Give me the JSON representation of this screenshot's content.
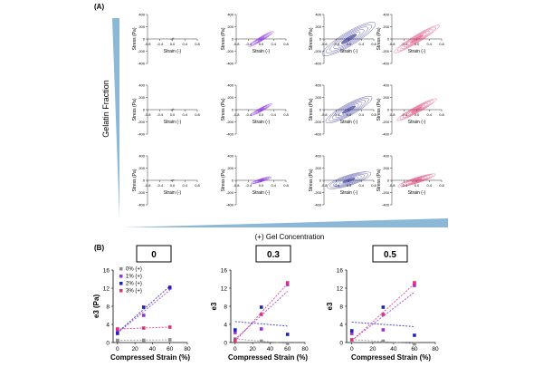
{
  "panel_a": {
    "label": "(A)",
    "y_arrow_label": "Gelatin Fraction",
    "x_arrow_label": "(+) Gel Concentration",
    "colors": [
      "#5c5c5c",
      "#8a2be2",
      "#1a1a8c",
      "#d8306a"
    ],
    "row_slopes": [
      1.0,
      0.6,
      0.35
    ],
    "col_amp": [
      0.05,
      0.8,
      1.7,
      1.45
    ],
    "common": {
      "xlabel": "Strain (-)",
      "ylabel": "Stress (Pa)",
      "xticks": [
        "-0.8",
        "-0.4",
        "0.0",
        "0.4",
        "0.8"
      ],
      "yticks": [
        "400",
        "200",
        "0",
        "-200",
        "-400"
      ]
    }
  },
  "panel_b": {
    "label": "(B)",
    "legend": [
      "0% (+)",
      "1% (+)",
      "2% (+)",
      "3% (+)"
    ]
  },
  "chart_data": [
    {
      "type": "scatter",
      "title": "0",
      "xlabel": "Compressed Strain (%)",
      "ylabel": "e3 (Pa)",
      "xlim": [
        -5,
        80
      ],
      "ylim": [
        0,
        16
      ],
      "xticks": [
        0,
        20,
        40,
        60,
        80
      ],
      "yticks": [
        0,
        4,
        8,
        12,
        16
      ],
      "series": [
        {
          "name": "0% (+)",
          "color": "#8c8c8c",
          "x": [
            0,
            30,
            60
          ],
          "y": [
            0.5,
            0.5,
            0.6
          ]
        },
        {
          "name": "1% (+)",
          "color": "#9b30d9",
          "x": [
            0,
            30,
            60
          ],
          "y": [
            2.5,
            6.0,
            12.0
          ]
        },
        {
          "name": "2% (+)",
          "color": "#2020c0",
          "x": [
            0,
            30,
            60
          ],
          "y": [
            2.0,
            7.8,
            12.2
          ]
        },
        {
          "name": "3% (+)",
          "color": "#e0307a",
          "x": [
            0,
            30,
            60
          ],
          "y": [
            3.0,
            3.2,
            3.4
          ]
        }
      ]
    },
    {
      "type": "scatter",
      "title": "0.3",
      "xlabel": "Compressed Strain (%)",
      "ylabel": "e3",
      "xlim": [
        -5,
        80
      ],
      "ylim": [
        0,
        16
      ],
      "xticks": [
        0,
        20,
        40,
        60,
        80
      ],
      "yticks": [
        0,
        4,
        8,
        12,
        16
      ],
      "series": [
        {
          "name": "0% (+)",
          "color": "#8c8c8c",
          "x": [
            0,
            30,
            60
          ],
          "y": [
            0.8,
            0.3,
            -0.2
          ]
        },
        {
          "name": "1% (+)",
          "color": "#9b30d9",
          "x": [
            0,
            30,
            60
          ],
          "y": [
            2.2,
            3.0,
            12.8
          ]
        },
        {
          "name": "2% (+)",
          "color": "#2020c0",
          "x": [
            0,
            30,
            60
          ],
          "y": [
            2.8,
            7.8,
            1.8
          ]
        },
        {
          "name": "3% (+)",
          "color": "#e0307a",
          "x": [
            0,
            30,
            60
          ],
          "y": [
            0.5,
            6.2,
            13.2
          ]
        }
      ]
    },
    {
      "type": "scatter",
      "title": "0.5",
      "xlabel": "Compressed Strain (%)",
      "ylabel": "e3",
      "xlim": [
        -5,
        80
      ],
      "ylim": [
        0,
        16
      ],
      "xticks": [
        0,
        20,
        40,
        60,
        80
      ],
      "yticks": [
        0,
        4,
        8,
        12,
        16
      ],
      "series": [
        {
          "name": "0% (+)",
          "color": "#8c8c8c",
          "x": [
            0,
            30,
            60
          ],
          "y": [
            0.6,
            0.3,
            -0.3
          ]
        },
        {
          "name": "1% (+)",
          "color": "#9b30d9",
          "x": [
            0,
            30,
            60
          ],
          "y": [
            2.0,
            2.8,
            12.6
          ]
        },
        {
          "name": "2% (+)",
          "color": "#2020c0",
          "x": [
            0,
            30,
            60
          ],
          "y": [
            2.6,
            7.8,
            1.6
          ]
        },
        {
          "name": "3% (+)",
          "color": "#e0307a",
          "x": [
            0,
            30,
            60
          ],
          "y": [
            0.6,
            6.2,
            13.2
          ]
        }
      ]
    }
  ]
}
